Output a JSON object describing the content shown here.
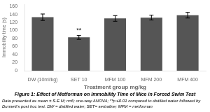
{
  "chart_data": {
    "type": "bar",
    "title": "Figure 1: Effect of Metforman on Immobility Time of Mice in Forced Swim Test",
    "caption": [
      "Data presented as mean ± S.E.M; n=6; one-way ANOVA; **p ≤0.01 compared to distilled water followed by",
      "Dunnett’s post hoc test. DW = distilled water; SET= sertraline; MFM = metforman"
    ],
    "categories": [
      "DW (10ml/kg)",
      "SET 10",
      "MFM 100",
      "MFM 200",
      "MFM 400"
    ],
    "values": [
      133,
      83,
      130,
      132,
      138
    ],
    "errors": [
      8,
      5,
      7,
      6,
      7
    ],
    "color": "#555555",
    "xlabel": "Treatment group mg/kg",
    "ylabel": "Immobility time (s)",
    "ylim": [
      0,
      165
    ],
    "yticks": [
      0,
      20,
      40,
      60,
      80,
      100,
      120,
      140,
      160
    ],
    "annotations": [
      {
        "category": "SET 10",
        "text": "**"
      }
    ],
    "grid": false
  }
}
